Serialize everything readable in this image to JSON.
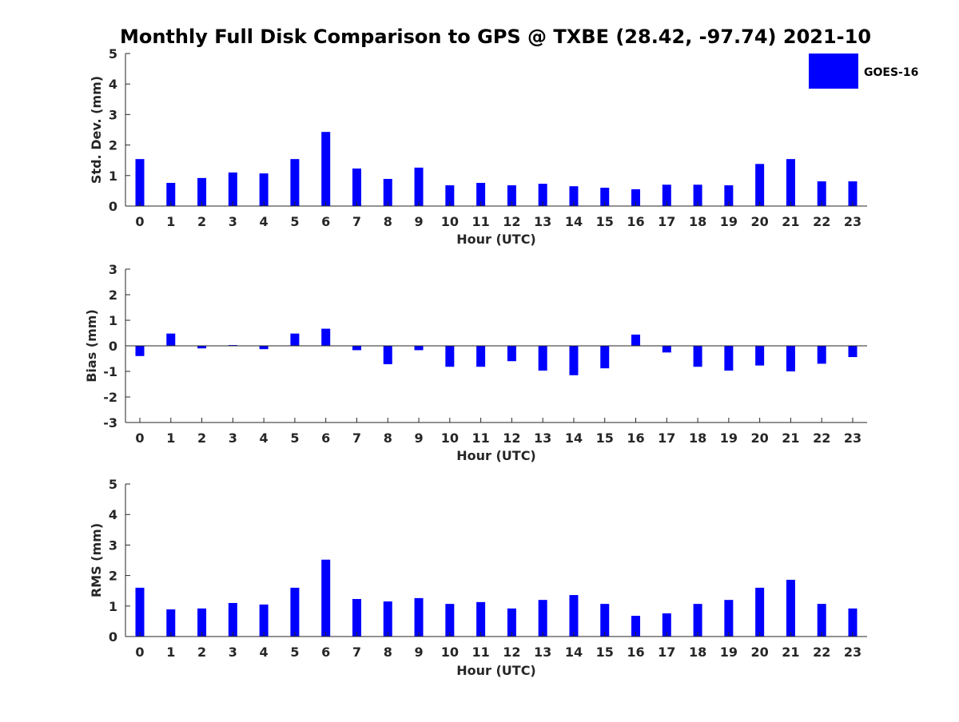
{
  "title": "Monthly Full Disk Comparison to GPS @ TXBE (28.42, -97.74) 2021-10",
  "legend": {
    "label": "GOES-16",
    "color": "#0000ff"
  },
  "colors": {
    "bar": "#0000ff",
    "axis": "#262626"
  },
  "chart_data": [
    {
      "type": "bar",
      "title": "Monthly Full Disk Comparison to GPS @ TXBE (28.42, -97.74) 2021-10",
      "xlabel": "Hour (UTC)",
      "ylabel": "Std. Dev. (mm)",
      "ylim": [
        0,
        5
      ],
      "yticks": [
        0,
        1,
        2,
        3,
        4,
        5
      ],
      "categories": [
        "0",
        "1",
        "2",
        "3",
        "4",
        "5",
        "6",
        "7",
        "8",
        "9",
        "10",
        "11",
        "12",
        "13",
        "14",
        "15",
        "16",
        "17",
        "18",
        "19",
        "20",
        "21",
        "22",
        "23"
      ],
      "series": [
        {
          "name": "GOES-16",
          "values": [
            1.54,
            0.76,
            0.92,
            1.1,
            1.07,
            1.54,
            2.43,
            1.23,
            0.89,
            1.26,
            0.68,
            0.76,
            0.68,
            0.73,
            0.65,
            0.6,
            0.55,
            0.7,
            0.7,
            0.68,
            1.38,
            1.54,
            0.81,
            0.81
          ]
        }
      ],
      "legend": "top-right",
      "grid": false
    },
    {
      "type": "bar",
      "xlabel": "Hour (UTC)",
      "ylabel": "Bias (mm)",
      "ylim": [
        -3,
        3
      ],
      "yticks": [
        -3,
        -2,
        -1,
        0,
        1,
        2,
        3
      ],
      "categories": [
        "0",
        "1",
        "2",
        "3",
        "4",
        "5",
        "6",
        "7",
        "8",
        "9",
        "10",
        "11",
        "12",
        "13",
        "14",
        "15",
        "16",
        "17",
        "18",
        "19",
        "20",
        "21",
        "22",
        "23"
      ],
      "series": [
        {
          "name": "GOES-16",
          "values": [
            -0.4,
            0.48,
            -0.1,
            0.03,
            -0.13,
            0.48,
            0.67,
            -0.17,
            -0.72,
            -0.17,
            -0.82,
            -0.82,
            -0.6,
            -0.97,
            -1.15,
            -0.88,
            0.44,
            -0.26,
            -0.82,
            -0.97,
            -0.77,
            -1.0,
            -0.7,
            -0.44
          ]
        }
      ],
      "grid": false
    },
    {
      "type": "bar",
      "xlabel": "Hour (UTC)",
      "ylabel": "RMS (mm)",
      "ylim": [
        0,
        5
      ],
      "yticks": [
        0,
        1,
        2,
        3,
        4,
        5
      ],
      "categories": [
        "0",
        "1",
        "2",
        "3",
        "4",
        "5",
        "6",
        "7",
        "8",
        "9",
        "10",
        "11",
        "12",
        "13",
        "14",
        "15",
        "16",
        "17",
        "18",
        "19",
        "20",
        "21",
        "22",
        "23"
      ],
      "series": [
        {
          "name": "GOES-16",
          "values": [
            1.6,
            0.89,
            0.92,
            1.1,
            1.05,
            1.6,
            2.52,
            1.23,
            1.15,
            1.26,
            1.07,
            1.13,
            0.92,
            1.2,
            1.36,
            1.07,
            0.68,
            0.76,
            1.07,
            1.2,
            1.6,
            1.86,
            1.07,
            0.92
          ]
        }
      ],
      "grid": false
    }
  ]
}
